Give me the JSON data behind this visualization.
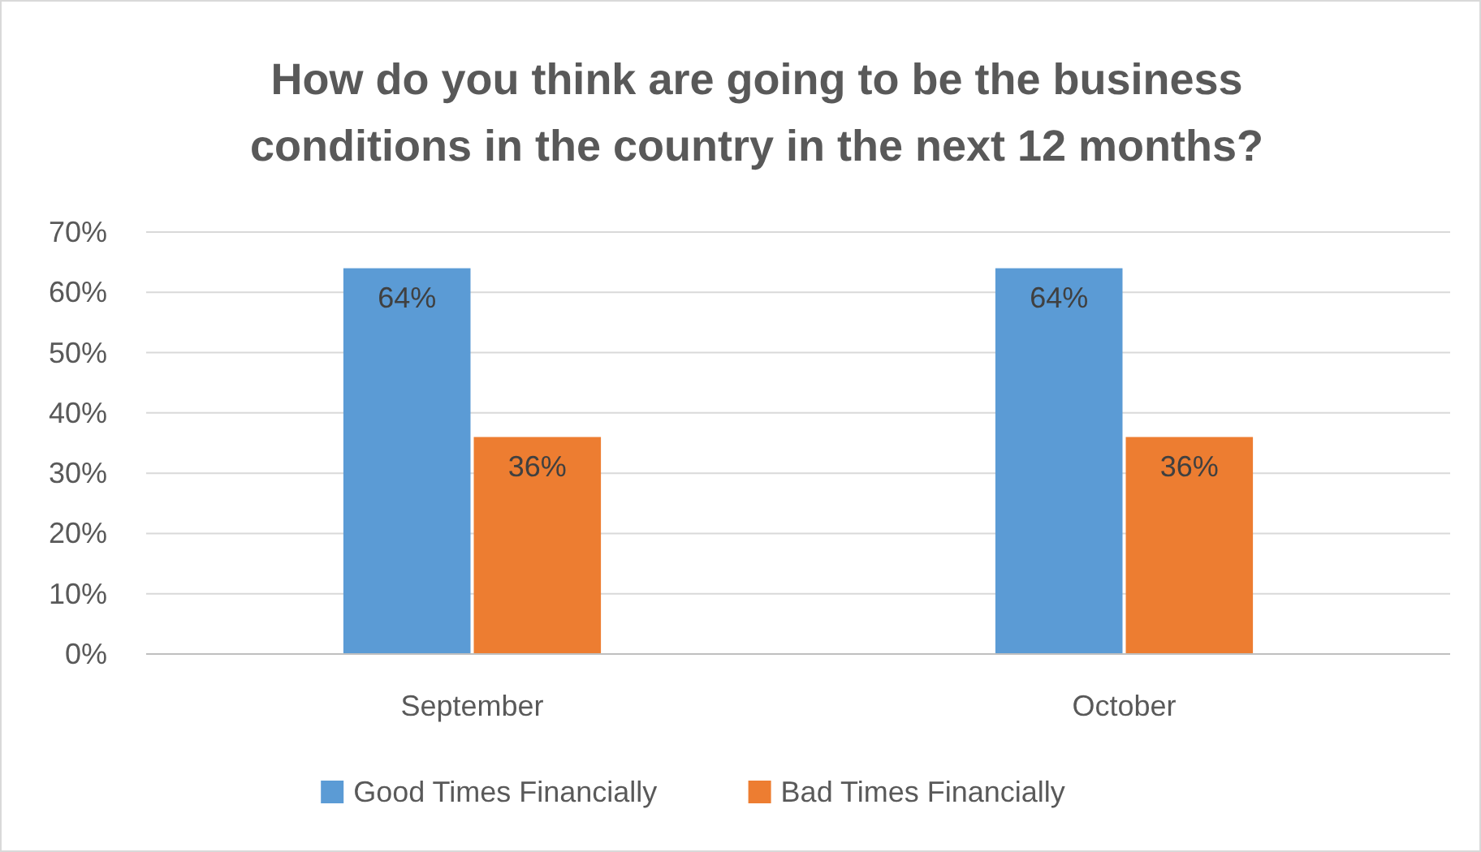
{
  "chart_data": {
    "type": "bar",
    "title": "How do you think are going to be the business conditions in the country in the next 12 months?",
    "categories": [
      "September",
      "October"
    ],
    "series": [
      {
        "name": "Good Times Financially",
        "color": "#5b9bd5",
        "values": [
          64,
          64
        ],
        "value_labels": [
          "64%",
          "64%"
        ]
      },
      {
        "name": "Bad Times Financially",
        "color": "#ed7d31",
        "values": [
          36,
          36
        ],
        "value_labels": [
          "36%",
          "36%"
        ]
      }
    ],
    "ylim": [
      0,
      70
    ],
    "yticks": [
      {
        "value": 0,
        "label": "0%"
      },
      {
        "value": 10,
        "label": "10%"
      },
      {
        "value": 20,
        "label": "20%"
      },
      {
        "value": 30,
        "label": "30%"
      },
      {
        "value": 40,
        "label": "40%"
      },
      {
        "value": 50,
        "label": "50%"
      },
      {
        "value": 60,
        "label": "60%"
      },
      {
        "value": 70,
        "label": "70%"
      }
    ],
    "grid": "y",
    "legend": "bottom"
  }
}
